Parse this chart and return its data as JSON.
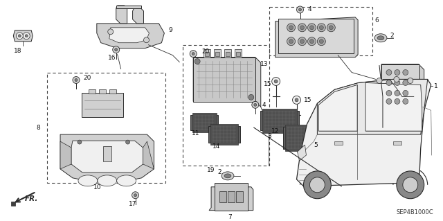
{
  "bg_color": "#ffffff",
  "fig_width": 6.4,
  "fig_height": 3.19,
  "dpi": 100,
  "diagram_code": "SEP4B1000C",
  "line_color": "#2a2a2a",
  "fill_light": "#f0f0f0",
  "fill_mid": "#d0d0d0",
  "fill_dark": "#808080",
  "fill_darkest": "#404040"
}
